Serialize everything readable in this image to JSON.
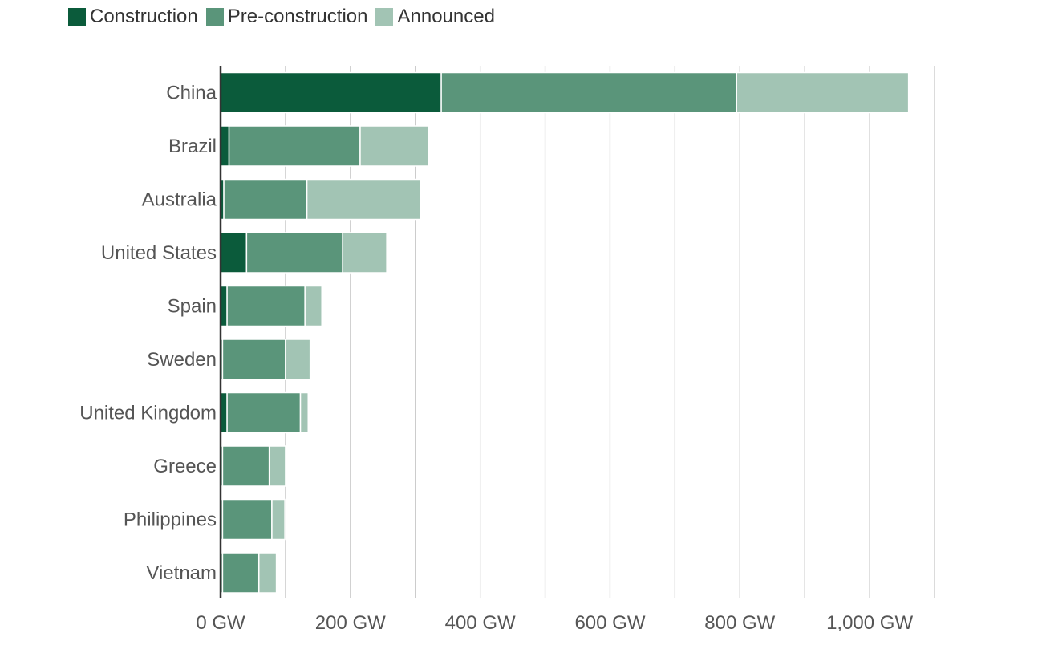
{
  "chart_data": {
    "type": "bar",
    "orientation": "horizontal",
    "stacked": true,
    "categories": [
      "China",
      "Brazil",
      "Australia",
      "United States",
      "Spain",
      "Sweden",
      "United Kingdom",
      "Greece",
      "Philippines",
      "Vietnam"
    ],
    "series": [
      {
        "name": "Construction",
        "color": "#0b5b3b",
        "values": [
          340,
          13,
          5,
          40,
          10,
          3,
          10,
          3,
          3,
          3
        ]
      },
      {
        "name": "Pre-construction",
        "color": "#5a957a",
        "values": [
          455,
          202,
          128,
          148,
          120,
          97,
          113,
          72,
          76,
          56
        ]
      },
      {
        "name": "Announced",
        "color": "#a2c4b4",
        "values": [
          265,
          105,
          175,
          68,
          26,
          38,
          12,
          25,
          20,
          27
        ]
      }
    ],
    "xticks": [
      0,
      200,
      400,
      600,
      800,
      1000
    ],
    "xtick_labels": [
      "0 GW",
      "200 GW",
      "400 GW",
      "600 GW",
      "800 GW",
      "1,000 GW"
    ],
    "xlim": [
      0,
      1100
    ],
    "gridline_step": 100,
    "grid": true,
    "legend_position": "top-left",
    "title": "",
    "xlabel": "",
    "ylabel": ""
  }
}
